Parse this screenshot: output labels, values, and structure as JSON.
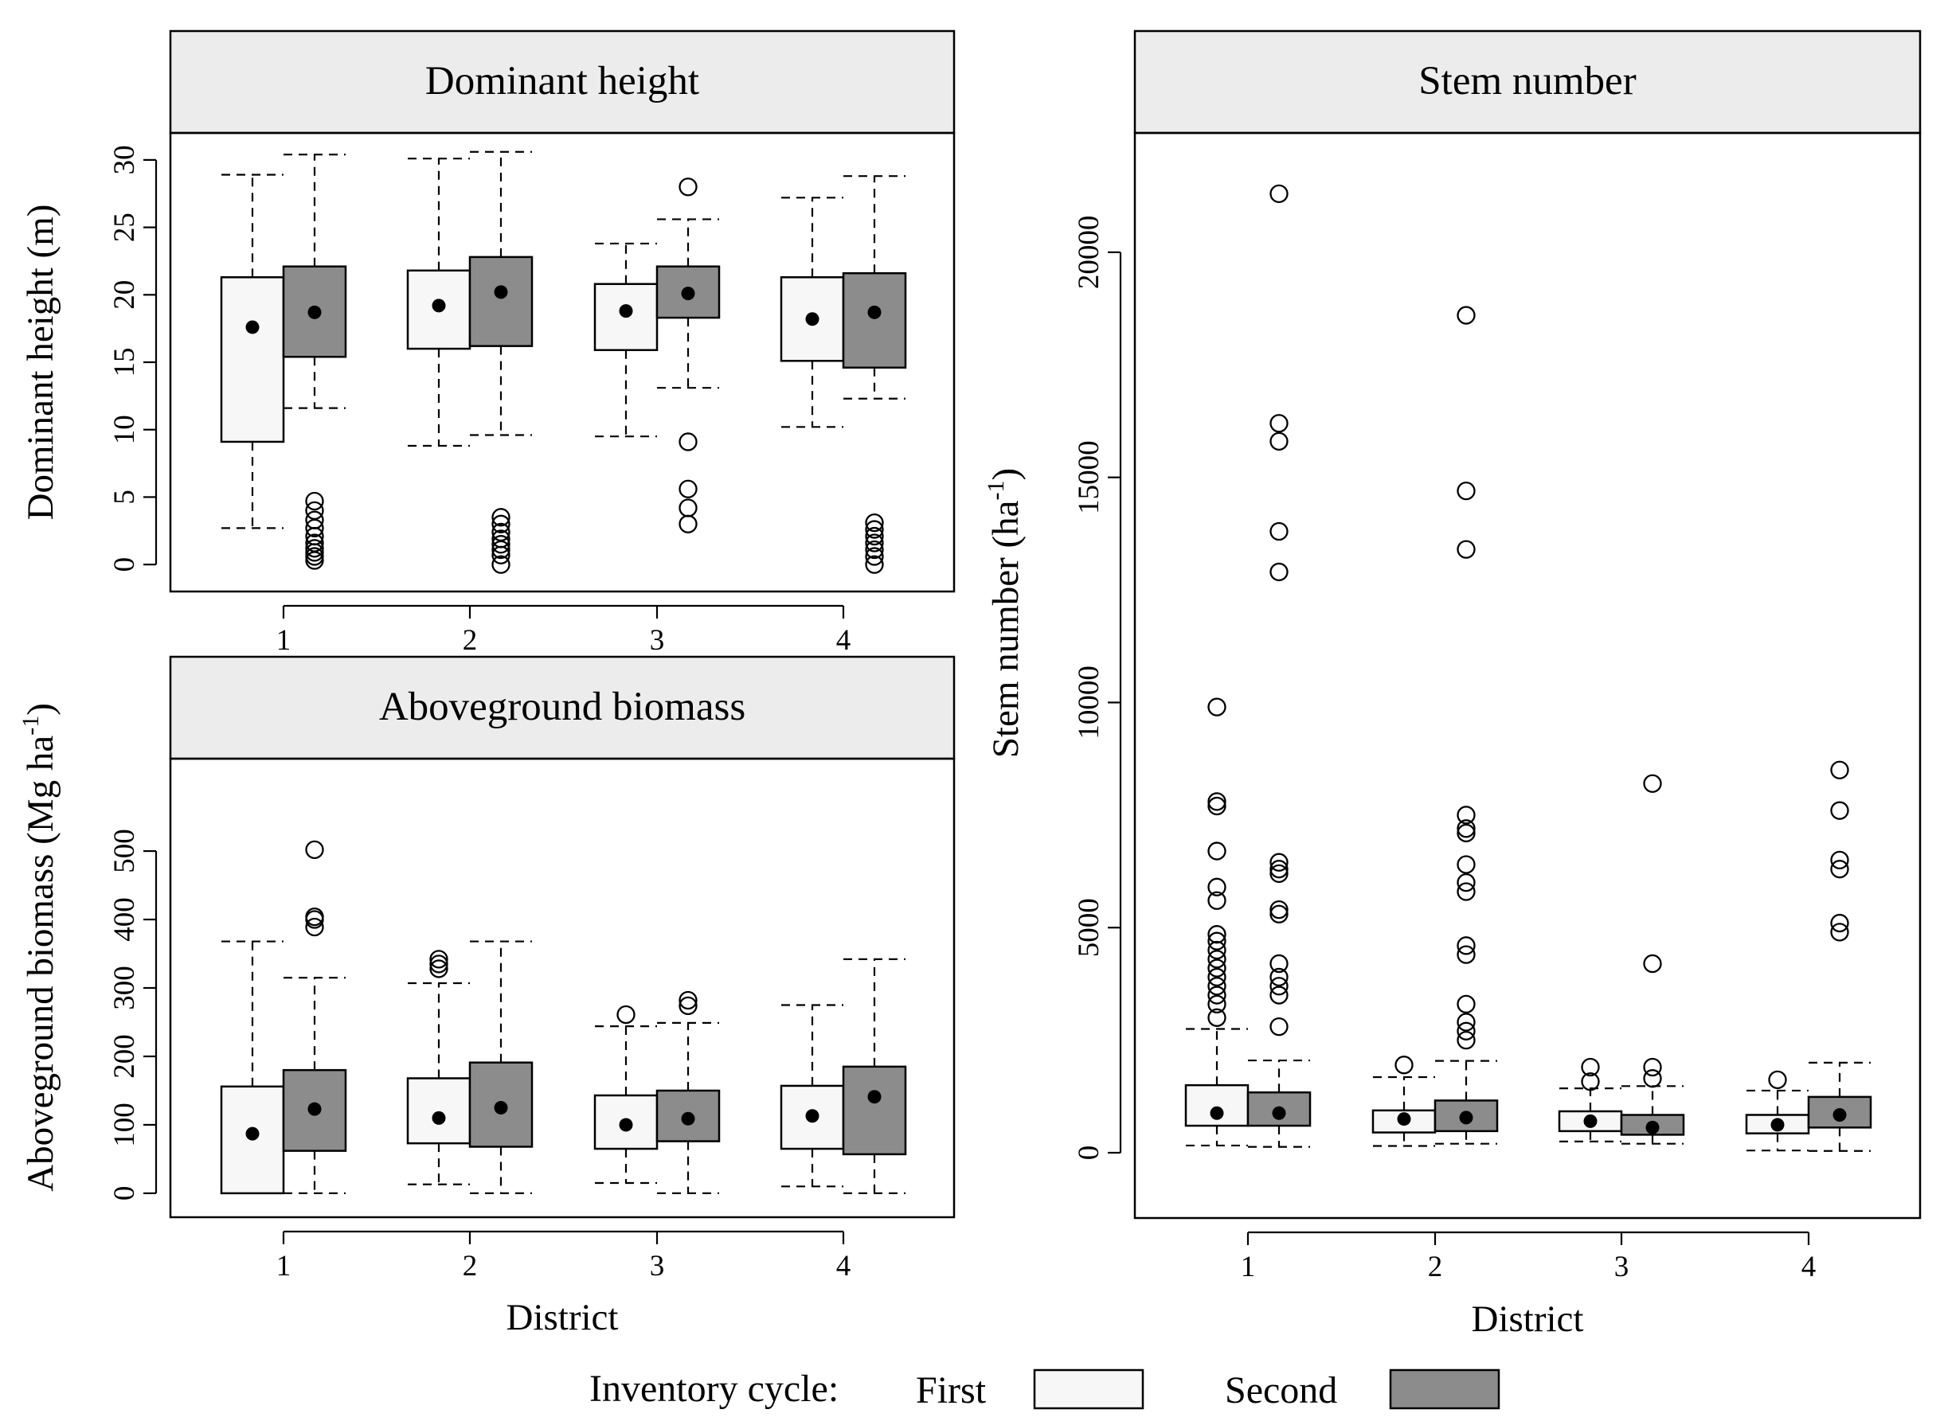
{
  "chart_data": [
    {
      "type": "box",
      "title": "Dominant height",
      "ylabel": "Dominant height (m)",
      "xlabel": "",
      "ylim": [
        -2,
        32
      ],
      "yticks": [
        0,
        5,
        10,
        15,
        20,
        25,
        30
      ],
      "categories": [
        "1",
        "2",
        "3",
        "4"
      ],
      "series": [
        {
          "name": "First",
          "boxes": [
            {
              "whislo": 2.7,
              "q1": 9.1,
              "q3": 21.3,
              "whishi": 28.9,
              "mean": 17.6,
              "fliers": []
            },
            {
              "whislo": 8.8,
              "q1": 16.0,
              "q3": 21.8,
              "whishi": 30.1,
              "mean": 19.2,
              "fliers": []
            },
            {
              "whislo": 9.5,
              "q1": 15.9,
              "q3": 20.8,
              "whishi": 23.8,
              "mean": 18.8,
              "fliers": []
            },
            {
              "whislo": 10.2,
              "q1": 15.1,
              "q3": 21.3,
              "whishi": 27.2,
              "mean": 18.2,
              "fliers": []
            }
          ]
        },
        {
          "name": "Second",
          "boxes": [
            {
              "whislo": 11.6,
              "q1": 15.4,
              "q3": 22.1,
              "whishi": 30.4,
              "mean": 18.7,
              "fliers": [
                0.3,
                0.6,
                0.9,
                1.2,
                1.6,
                2.1,
                2.7,
                3.3,
                4.0,
                4.7
              ]
            },
            {
              "whislo": 9.6,
              "q1": 16.2,
              "q3": 22.8,
              "whishi": 30.6,
              "mean": 20.2,
              "fliers": [
                0.0,
                0.7,
                1.1,
                1.5,
                1.9,
                2.4,
                3.0,
                3.5
              ]
            },
            {
              "whislo": 13.1,
              "q1": 18.3,
              "q3": 22.1,
              "whishi": 25.6,
              "mean": 20.1,
              "fliers": [
                3.0,
                4.2,
                5.6,
                9.1,
                28.0
              ]
            },
            {
              "whislo": 12.3,
              "q1": 14.6,
              "q3": 21.6,
              "whishi": 28.8,
              "mean": 18.7,
              "fliers": [
                0.0,
                0.6,
                1.1,
                1.6,
                2.1,
                2.6,
                3.1
              ]
            }
          ]
        }
      ]
    },
    {
      "type": "box",
      "title": "Aboveground biomass",
      "ylabel": "Aboveground biomass (Mg ha",
      "ylabel_sup": "-1",
      "ylabel_end": ")",
      "xlabel": "District",
      "ylim": [
        -35,
        635
      ],
      "yticks": [
        0,
        100,
        200,
        300,
        400,
        500
      ],
      "categories": [
        "1",
        "2",
        "3",
        "4"
      ],
      "series": [
        {
          "name": "First",
          "boxes": [
            {
              "whislo": 0,
              "q1": 0,
              "q3": 156,
              "whishi": 368,
              "mean": 87,
              "fliers": []
            },
            {
              "whislo": 13,
              "q1": 73,
              "q3": 168,
              "whishi": 307,
              "mean": 110,
              "fliers": [
                328,
                335,
                342
              ]
            },
            {
              "whislo": 15,
              "q1": 65,
              "q3": 143,
              "whishi": 244,
              "mean": 100,
              "fliers": [
                261
              ]
            },
            {
              "whislo": 10,
              "q1": 65,
              "q3": 157,
              "whishi": 275,
              "mean": 113,
              "fliers": []
            }
          ]
        },
        {
          "name": "Second",
          "boxes": [
            {
              "whislo": 0,
              "q1": 62,
              "q3": 180,
              "whishi": 315,
              "mean": 123,
              "fliers": [
                389,
                400,
                404,
                502
              ]
            },
            {
              "whislo": 0,
              "q1": 68,
              "q3": 191,
              "whishi": 368,
              "mean": 125,
              "fliers": []
            },
            {
              "whislo": 0,
              "q1": 76,
              "q3": 150,
              "whishi": 249,
              "mean": 109,
              "fliers": [
                274,
                282
              ]
            },
            {
              "whislo": 0,
              "q1": 57,
              "q3": 185,
              "whishi": 342,
              "mean": 141,
              "fliers": []
            }
          ]
        }
      ]
    },
    {
      "type": "box",
      "title": "Stem number",
      "ylabel": "Stem number (ha",
      "ylabel_sup": "-1",
      "ylabel_end": ")",
      "xlabel": "District",
      "ylim": [
        -1450,
        22650
      ],
      "yticks": [
        0,
        5000,
        10000,
        15000,
        20000
      ],
      "categories": [
        "1",
        "2",
        "3",
        "4"
      ],
      "series": [
        {
          "name": "First",
          "boxes": [
            {
              "whislo": 160,
              "q1": 600,
              "q3": 1500,
              "whishi": 2750,
              "mean": 880,
              "fliers": [
                3000,
                3300,
                3500,
                3700,
                3900,
                4100,
                4300,
                4500,
                4700,
                4850,
                5600,
                5900,
                6700,
                7700,
                7800,
                9900
              ]
            },
            {
              "whislo": 150,
              "q1": 450,
              "q3": 940,
              "whishi": 1680,
              "mean": 750,
              "fliers": [
                1950
              ]
            },
            {
              "whislo": 250,
              "q1": 480,
              "q3": 920,
              "whishi": 1430,
              "mean": 700,
              "fliers": [
                1580,
                1900
              ]
            },
            {
              "whislo": 50,
              "q1": 430,
              "q3": 840,
              "whishi": 1380,
              "mean": 620,
              "fliers": [
                1620
              ]
            }
          ]
        },
        {
          "name": "Second",
          "boxes": [
            {
              "whislo": 130,
              "q1": 600,
              "q3": 1340,
              "whishi": 2050,
              "mean": 880,
              "fliers": [
                2800,
                3500,
                3700,
                3900,
                4200,
                5300,
                5400,
                6200,
                6300,
                6450,
                12900,
                13800,
                15800,
                16200,
                21300
              ]
            },
            {
              "whislo": 200,
              "q1": 480,
              "q3": 1160,
              "whishi": 2040,
              "mean": 780,
              "fliers": [
                2500,
                2700,
                2900,
                3300,
                4400,
                4600,
                5800,
                6000,
                6400,
                7100,
                7200,
                7500,
                13400,
                14700,
                18600
              ]
            },
            {
              "whislo": 200,
              "q1": 400,
              "q3": 840,
              "whishi": 1480,
              "mean": 560,
              "fliers": [
                1650,
                1900,
                4200,
                8200
              ]
            },
            {
              "whislo": 40,
              "q1": 560,
              "q3": 1240,
              "whishi": 2000,
              "mean": 840,
              "fliers": [
                4900,
                5100,
                6300,
                6500,
                7600,
                8500
              ]
            }
          ]
        }
      ]
    }
  ],
  "legend": {
    "title": "Inventory cycle:",
    "first": "First",
    "second": "Second",
    "first_color": "#f7f7f7",
    "second_color": "#8c8c8c"
  }
}
